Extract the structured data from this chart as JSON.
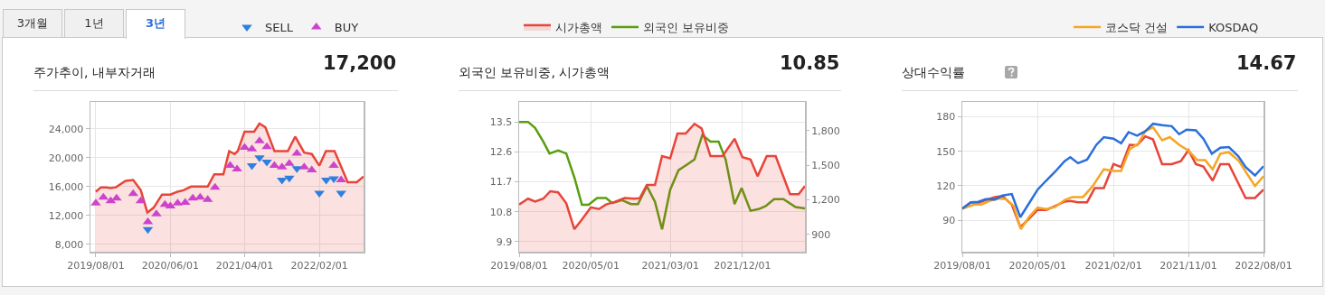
{
  "chart_data": [
    {
      "type": "area",
      "title": "주가추이, 내부자거래",
      "subtitle": "17,200",
      "annotations": [
        "3개월",
        "1년",
        "3년"
      ],
      "legend": "top right",
      "grid": true,
      "xlim": [
        "2019-07-10",
        "2022-08-01"
      ],
      "xticks": [
        {
          "value": "2019-08-01",
          "label": "2019/08/01"
        },
        {
          "value": "2020-06-01",
          "label": "2020/06/01"
        },
        {
          "value": "2021-04-01",
          "label": "2021/04/01"
        },
        {
          "value": "2022-02-01",
          "label": "2022/02/01"
        }
      ],
      "ylim": [
        7000,
        27700
      ],
      "yticks": [
        {
          "value": 8000,
          "label": "8,000"
        },
        {
          "value": 12000,
          "label": "12,000"
        },
        {
          "value": 16000,
          "label": "16,000"
        },
        {
          "value": 20000,
          "label": "20,000"
        },
        {
          "value": 24000,
          "label": "24,000"
        }
      ],
      "series": [
        {
          "color": "#e8443a",
          "x": [
            "2019-08-01",
            "2019-08-22",
            "2019-09-13",
            "2019-09-28",
            "2019-10-22",
            "2019-12-01",
            "2020-01-01",
            "2020-02-01",
            "2020-02-28",
            "2020-03-25",
            "2020-04-28",
            "2020-06-01",
            "2020-07-01",
            "2020-07-25",
            "2020-08-25",
            "2020-11-01",
            "2020-11-28",
            "2021-01-04",
            "2021-01-28",
            "2021-02-19",
            "2021-03-04",
            "2021-04-01",
            "2021-05-10",
            "2021-06-01",
            "2021-06-25",
            "2021-08-01",
            "2021-09-25",
            "2021-10-25",
            "2021-12-01",
            "2022-01-01",
            "2022-02-01",
            "2022-02-28",
            "2022-04-04",
            "2022-05-28",
            "2022-07-04",
            "2022-08-01"
          ],
          "values": [
            15300,
            15900,
            15900,
            15800,
            15900,
            16800,
            16900,
            15500,
            12400,
            13100,
            14900,
            14900,
            15300,
            15500,
            16000,
            16000,
            17700,
            17700,
            20900,
            20500,
            20900,
            23600,
            23600,
            24700,
            24200,
            20900,
            20900,
            22900,
            20700,
            20500,
            18900,
            20900,
            20900,
            16600,
            16600,
            17400
          ]
        },
        {
          "type": "scatter",
          "name": "SELL",
          "color": "#2f7fe0",
          "marker": "triangle-down",
          "x": [
            "2020-03-01",
            "2021-05-01",
            "2021-06-01",
            "2021-07-01",
            "2021-09-01",
            "2021-10-01",
            "2021-11-01",
            "2022-02-01",
            "2022-03-01",
            "2022-04-01",
            "2022-05-01"
          ],
          "values": [
            10100,
            18900,
            20000,
            19400,
            16900,
            17200,
            18500,
            15100,
            16900,
            17100,
            15100
          ]
        },
        {
          "type": "scatter",
          "name": "BUY",
          "color": "#cc44cc",
          "marker": "triangle",
          "x": [
            "2019-08-01",
            "2019-09-01",
            "2019-10-01",
            "2019-10-25",
            "2020-01-01",
            "2020-02-01",
            "2020-03-01",
            "2020-04-05",
            "2020-05-10",
            "2020-06-01",
            "2020-07-01",
            "2020-08-01",
            "2020-09-01",
            "2020-10-01",
            "2020-11-01",
            "2020-12-01",
            "2021-02-01",
            "2021-03-01",
            "2021-04-01",
            "2021-05-01",
            "2021-06-01",
            "2021-07-01",
            "2021-08-01",
            "2021-09-01",
            "2021-10-01",
            "2021-11-01",
            "2021-12-01",
            "2022-01-01",
            "2022-04-01",
            "2022-05-01"
          ],
          "values": [
            13700,
            14500,
            14000,
            14400,
            15000,
            14000,
            11100,
            12200,
            13500,
            13300,
            13700,
            13800,
            14400,
            14500,
            14200,
            15900,
            18900,
            18400,
            21400,
            21200,
            22300,
            21500,
            18900,
            18700,
            19200,
            20600,
            18700,
            18300,
            18900,
            16900
          ]
        }
      ]
    },
    {
      "type": "line",
      "title": "외국인 보유비중, 시가총액",
      "subtitle": "10.85",
      "legend": "top left",
      "grid": true,
      "xlim": [
        "2019-08-01",
        "2022-07-28"
      ],
      "xticks": [
        {
          "value": "2019-08-01",
          "label": "2019/08/01"
        },
        {
          "value": "2020-05-01",
          "label": "2020/05/01"
        },
        {
          "value": "2021-03-01",
          "label": "2021/03/01"
        },
        {
          "value": "2021-12-01",
          "label": "2021/12/01"
        }
      ],
      "ylim": [
        9.6,
        14.1
      ],
      "yticks": [
        9.9,
        10.8,
        11.7,
        12.6,
        13.5
      ],
      "y2lim": [
        750,
        2050
      ],
      "y2ticks": [
        {
          "value": 900,
          "label": "900"
        },
        {
          "value": 1200,
          "label": "1,200"
        },
        {
          "value": 1500,
          "label": "1,500"
        },
        {
          "value": 1800,
          "label": "1,800"
        }
      ],
      "series": [
        {
          "type": "area",
          "name": "시가총액",
          "color": "#e8443a",
          "axis": "y2",
          "x": [
            "2019-08-01",
            "2019-09-04",
            "2019-10-01",
            "2019-11-01",
            "2019-11-28",
            "2019-12-28",
            "2020-01-28",
            "2020-02-28",
            "2020-03-28",
            "2020-05-01",
            "2020-06-01",
            "2020-06-28",
            "2020-07-28",
            "2020-09-07",
            "2020-10-13",
            "2020-11-04",
            "2020-12-01",
            "2021-01-01",
            "2021-01-28",
            "2021-02-28",
            "2021-03-28",
            "2021-04-28",
            "2021-06-01",
            "2021-06-28",
            "2021-08-01",
            "2021-09-16",
            "2021-11-01",
            "2021-12-01",
            "2022-01-01",
            "2022-01-28",
            "2022-03-04",
            "2022-04-07",
            "2022-06-01",
            "2022-07-04",
            "2022-07-28"
          ],
          "values": [
            1160,
            1210,
            1185,
            1210,
            1275,
            1265,
            1170,
            945,
            1030,
            1135,
            1120,
            1160,
            1180,
            1215,
            1210,
            1215,
            1330,
            1330,
            1580,
            1560,
            1775,
            1775,
            1860,
            1820,
            1580,
            1580,
            1730,
            1570,
            1550,
            1405,
            1580,
            1580,
            1250,
            1250,
            1320
          ]
        },
        {
          "name": "외국인 보유비중",
          "color": "#5a9e0f",
          "x": [
            "2019-08-01",
            "2019-09-04",
            "2019-10-01",
            "2019-11-01",
            "2019-11-25",
            "2019-12-28",
            "2020-01-28",
            "2020-02-28",
            "2020-03-28",
            "2020-04-22",
            "2020-05-25",
            "2020-06-28",
            "2020-07-22",
            "2020-08-28",
            "2020-10-01",
            "2020-10-28",
            "2020-12-01",
            "2021-01-01",
            "2021-01-28",
            "2021-02-28",
            "2021-04-01",
            "2021-04-28",
            "2021-06-01",
            "2021-07-01",
            "2021-08-01",
            "2021-09-01",
            "2021-09-28",
            "2021-11-01",
            "2021-11-28",
            "2022-01-01",
            "2022-02-01",
            "2022-02-28",
            "2022-04-01",
            "2022-05-07",
            "2022-06-22",
            "2022-07-28"
          ],
          "values": [
            13.5,
            13.5,
            13.32,
            12.91,
            12.55,
            12.64,
            12.55,
            11.83,
            11.01,
            11.01,
            11.21,
            11.21,
            11.06,
            11.15,
            11.03,
            11.03,
            11.57,
            11.1,
            10.27,
            11.46,
            12.05,
            12.19,
            12.37,
            13.11,
            12.91,
            12.91,
            12.37,
            11.03,
            11.51,
            10.83,
            10.88,
            10.97,
            11.18,
            11.18,
            10.94,
            10.9
          ]
        }
      ]
    },
    {
      "type": "line",
      "title": "상대수익률",
      "subtitle": "14.67",
      "legend": "top right",
      "grid": true,
      "xlim": [
        "2019-08-01",
        "2022-08-01"
      ],
      "xticks": [
        {
          "value": "2019-08-01",
          "label": "2019/08/01"
        },
        {
          "value": "2020-05-01",
          "label": "2020/05/01"
        },
        {
          "value": "2021-02-01",
          "label": "2021/02/01"
        },
        {
          "value": "2021-11-01",
          "label": "2021/11/01"
        },
        {
          "value": "2022-08-01",
          "label": "2022/08/01"
        }
      ],
      "ylim": [
        62.5,
        193
      ],
      "yticks": [
        90,
        120,
        150,
        180
      ],
      "series": [
        {
          "color": "#e8443a",
          "x": [
            "2019-08-01",
            "2019-09-01",
            "2019-09-28",
            "2019-10-25",
            "2019-11-28",
            "2019-12-25",
            "2020-01-28",
            "2020-02-28",
            "2020-03-28",
            "2020-05-01",
            "2020-06-01",
            "2020-07-04",
            "2020-08-07",
            "2020-08-28",
            "2020-09-25",
            "2020-10-28",
            "2020-11-25",
            "2020-12-28",
            "2021-02-01",
            "2021-03-01",
            "2021-04-01",
            "2021-04-28",
            "2021-05-28",
            "2021-06-25",
            "2021-07-28",
            "2021-09-01",
            "2021-10-04",
            "2021-11-01",
            "2021-11-28",
            "2021-12-25",
            "2022-01-28",
            "2022-02-25",
            "2022-03-28",
            "2022-05-28",
            "2022-07-01",
            "2022-08-01"
          ],
          "values": [
            100,
            105.6,
            104.9,
            107.5,
            110,
            110.9,
            103.6,
            84,
            90.5,
            98.9,
            98.9,
            102.3,
            106.2,
            106.7,
            105.6,
            105.6,
            117.9,
            117.9,
            138.8,
            136.2,
            155.7,
            155.2,
            163,
            160.4,
            138.8,
            138.8,
            141.4,
            151,
            138.8,
            136.7,
            124.4,
            138.8,
            138.8,
            109.3,
            109.3,
            116.6
          ]
        },
        {
          "name": "코스닥 건설",
          "color": "#f5a623",
          "x": [
            "2019-08-01",
            "2019-09-13",
            "2019-10-10",
            "2019-11-07",
            "2019-12-10",
            "2020-01-07",
            "2020-02-04",
            "2020-03-01",
            "2020-04-01",
            "2020-05-01",
            "2020-06-01",
            "2020-07-04",
            "2020-08-07",
            "2020-09-04",
            "2020-10-13",
            "2020-11-16",
            "2020-12-28",
            "2021-02-01",
            "2021-03-01",
            "2021-04-01",
            "2021-05-01",
            "2021-05-28",
            "2021-06-25",
            "2021-07-28",
            "2021-08-25",
            "2021-09-28",
            "2021-11-01",
            "2021-12-04",
            "2022-01-01",
            "2022-01-28",
            "2022-02-25",
            "2022-03-28",
            "2022-05-04",
            "2022-05-28",
            "2022-07-01",
            "2022-08-01"
          ],
          "values": [
            100,
            103.6,
            103.6,
            106.7,
            108.8,
            108.3,
            102.3,
            82.2,
            93.1,
            101,
            99.6,
            101.5,
            107.5,
            110.1,
            110.1,
            119.2,
            134.3,
            132.8,
            132.8,
            151.8,
            156.3,
            167.5,
            170.9,
            159.7,
            162.3,
            155.7,
            150.5,
            142.2,
            142.2,
            134.3,
            147.9,
            149.2,
            141.4,
            132.3,
            119.7,
            128.3
          ]
        },
        {
          "name": "KOSDAQ",
          "color": "#2a6fdb",
          "x": [
            "2019-08-01",
            "2019-09-01",
            "2019-09-28",
            "2019-10-25",
            "2019-11-28",
            "2019-12-25",
            "2020-01-28",
            "2020-02-28",
            "2020-03-28",
            "2020-05-01",
            "2020-06-01",
            "2020-07-04",
            "2020-08-07",
            "2020-08-28",
            "2020-09-25",
            "2020-10-28",
            "2020-12-01",
            "2020-12-28",
            "2021-02-01",
            "2021-03-01",
            "2021-03-28",
            "2021-04-28",
            "2021-05-28",
            "2021-06-25",
            "2021-07-28",
            "2021-09-01",
            "2021-09-28",
            "2021-10-25",
            "2021-11-28",
            "2021-12-25",
            "2022-01-25",
            "2022-02-25",
            "2022-03-28",
            "2022-05-01",
            "2022-05-28",
            "2022-07-01",
            "2022-08-01"
          ],
          "values": [
            100,
            105.6,
            106,
            108.3,
            108,
            111.4,
            112.7,
            92.6,
            103.6,
            116.6,
            124.4,
            132.3,
            141.4,
            144.8,
            139.6,
            142.7,
            155.7,
            162.3,
            161,
            157,
            166.7,
            163.6,
            167.5,
            174,
            172.7,
            171.9,
            164.9,
            168.8,
            168.3,
            161,
            147.9,
            153.1,
            153.6,
            145.8,
            136.2,
            128.9,
            137
          ]
        }
      ]
    }
  ]
}
